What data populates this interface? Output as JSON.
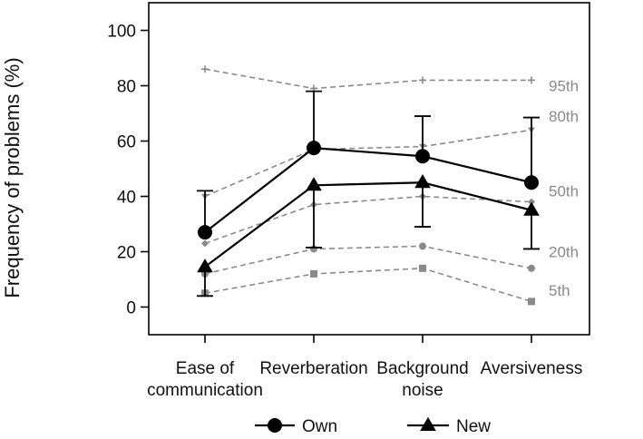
{
  "chart_data": {
    "type": "line",
    "title": "",
    "xlabel": "",
    "ylabel": "Frequency of problems (%)",
    "ylim": [
      -10,
      110
    ],
    "yticks": [
      0,
      20,
      40,
      60,
      80,
      100
    ],
    "categories": [
      [
        "Ease of",
        "communication"
      ],
      [
        "Reverberation"
      ],
      [
        "Background",
        "noise"
      ],
      [
        "Aversiveness"
      ]
    ],
    "percentiles": [
      {
        "label": "95th",
        "marker": "plus",
        "values": [
          86,
          79,
          82,
          82
        ]
      },
      {
        "label": "80th",
        "marker": "triangle-down",
        "values": [
          40,
          57,
          58,
          64
        ]
      },
      {
        "label": "50th",
        "marker": "diamond",
        "values": [
          23,
          37,
          40,
          38
        ]
      },
      {
        "label": "20th",
        "marker": "circle",
        "values": [
          12,
          21,
          22,
          14
        ]
      },
      {
        "label": "5th",
        "marker": "square",
        "values": [
          5,
          12,
          14,
          2
        ]
      }
    ],
    "series": [
      {
        "name": "Own",
        "marker": "circle",
        "values": [
          27,
          57.5,
          54.5,
          45
        ],
        "error_upper": [
          42,
          78,
          69,
          68.5
        ],
        "error_lower": null
      },
      {
        "name": "New",
        "marker": "triangle",
        "values": [
          14.5,
          44,
          45,
          35
        ],
        "error_upper": null,
        "error_lower": [
          4,
          21.5,
          29,
          21
        ]
      }
    ],
    "legend_position": "bottom",
    "grid": false,
    "colors": {
      "series": "#000000",
      "percentile": "#8a8a8a"
    }
  }
}
